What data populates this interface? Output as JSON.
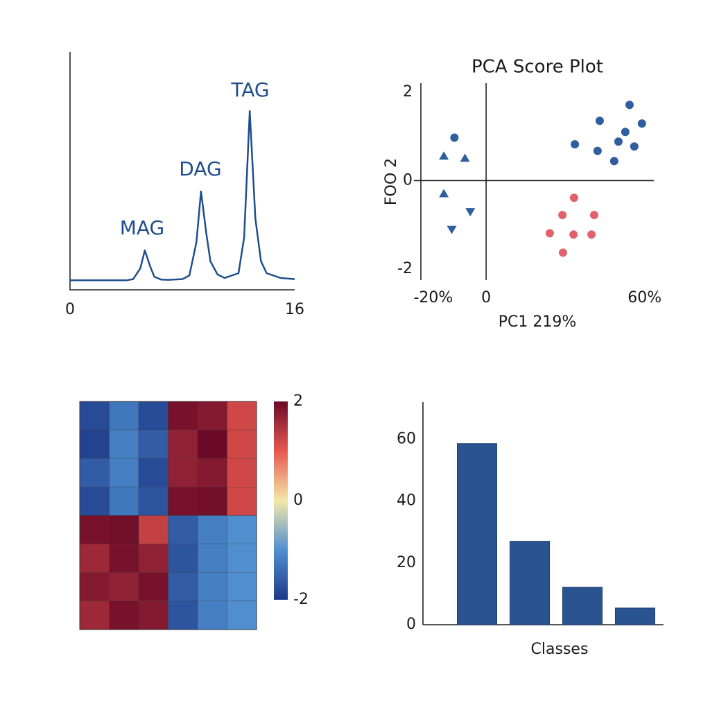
{
  "chart_data": [
    {
      "type": "line",
      "annotations": [
        "MAG",
        "DAG",
        "TAG"
      ],
      "x": [
        0,
        1,
        2,
        3,
        4,
        4.5,
        5,
        5.33,
        5.7,
        6,
        6.5,
        7,
        8,
        8.5,
        9,
        9.33,
        9.7,
        10,
        10.5,
        11,
        12,
        12.4,
        12.8,
        13.2,
        13.6,
        14,
        15,
        16
      ],
      "y": [
        4,
        4,
        4,
        4,
        4,
        4.5,
        9,
        16.6,
        10,
        5.5,
        4.3,
        4.2,
        4.5,
        6,
        20,
        41.4,
        24,
        12,
        6.5,
        5,
        7,
        22,
        75.2,
        30,
        12,
        7,
        5,
        4.5
      ],
      "color": "#1f4e8c",
      "xlim": [
        0,
        16
      ],
      "ylim": [
        0,
        100
      ],
      "xticks": [
        0,
        16
      ]
    },
    {
      "type": "scatter",
      "title": "PCA Score Plot",
      "xlabel": "PC1 219%",
      "ylabel": "FOO 2",
      "xlim": [
        -24.7,
        63.5
      ],
      "ylim": [
        -2.25,
        2.2
      ],
      "xticks": [
        {
          "value": -20,
          "label": "-20%"
        },
        0,
        {
          "value": 60,
          "label": "60%"
        }
      ],
      "yticks": [
        2,
        0,
        -2
      ],
      "series": [
        {
          "color": "#2f5e9e",
          "marker": "circle",
          "x": [
            33.6,
            43.0,
            54.3,
            52.7,
            59.0,
            50.1,
            42.2,
            56.1,
            48.5,
            -12
          ],
          "y": [
            0.82,
            1.35,
            1.71,
            1.1,
            1.29,
            0.88,
            0.67,
            0.77,
            0.44,
            0.97
          ]
        },
        {
          "color": "#e0626a",
          "marker": "circle",
          "x": [
            33.3,
            28.9,
            40.9,
            24.1,
            33.1,
            39.9,
            29.1
          ],
          "y": [
            -0.39,
            -0.78,
            -0.78,
            -1.19,
            -1.22,
            -1.22,
            -1.63
          ]
        },
        {
          "color": "#2f5e9e",
          "marker": "triangle-up",
          "x": [
            -16,
            -8,
            -16
          ],
          "y": [
            0.55,
            0.5,
            -0.3
          ]
        },
        {
          "color": "#2f5e9e",
          "marker": "triangle-down",
          "x": [
            -6,
            -13
          ],
          "y": [
            -0.7,
            -1.1
          ]
        }
      ]
    },
    {
      "type": "heatmap",
      "values": [
        [
          -1.8,
          -1.3,
          -1.8,
          1.9,
          1.8,
          1.2
        ],
        [
          -1.9,
          -1.2,
          -1.6,
          1.7,
          2.0,
          1.2
        ],
        [
          -1.6,
          -1.2,
          -1.8,
          1.7,
          1.8,
          1.2
        ],
        [
          -1.8,
          -1.3,
          -1.7,
          1.9,
          1.95,
          1.2
        ],
        [
          1.9,
          1.95,
          1.3,
          -1.6,
          -1.2,
          -1.0
        ],
        [
          1.6,
          1.9,
          1.7,
          -1.7,
          -1.2,
          -1.0
        ],
        [
          1.8,
          1.7,
          1.9,
          -1.6,
          -1.2,
          -1.0
        ],
        [
          1.6,
          1.9,
          1.8,
          -1.7,
          -1.2,
          -1.0
        ]
      ],
      "colormap": [
        "#1e3a8a",
        "#4f8fd0",
        "#f3e8a8",
        "#e8584f",
        "#6b0a28"
      ],
      "clim": [
        -2,
        2
      ],
      "cticks": [
        2,
        0,
        -2
      ]
    },
    {
      "type": "bar",
      "xlabel": "Classes",
      "categories": [
        null,
        null,
        null,
        null
      ],
      "values": [
        58.6,
        27,
        12.1,
        5.4
      ],
      "color": "#2a5490",
      "ylim": [
        0,
        72
      ],
      "yticks": [
        0,
        20,
        40,
        60
      ]
    }
  ]
}
